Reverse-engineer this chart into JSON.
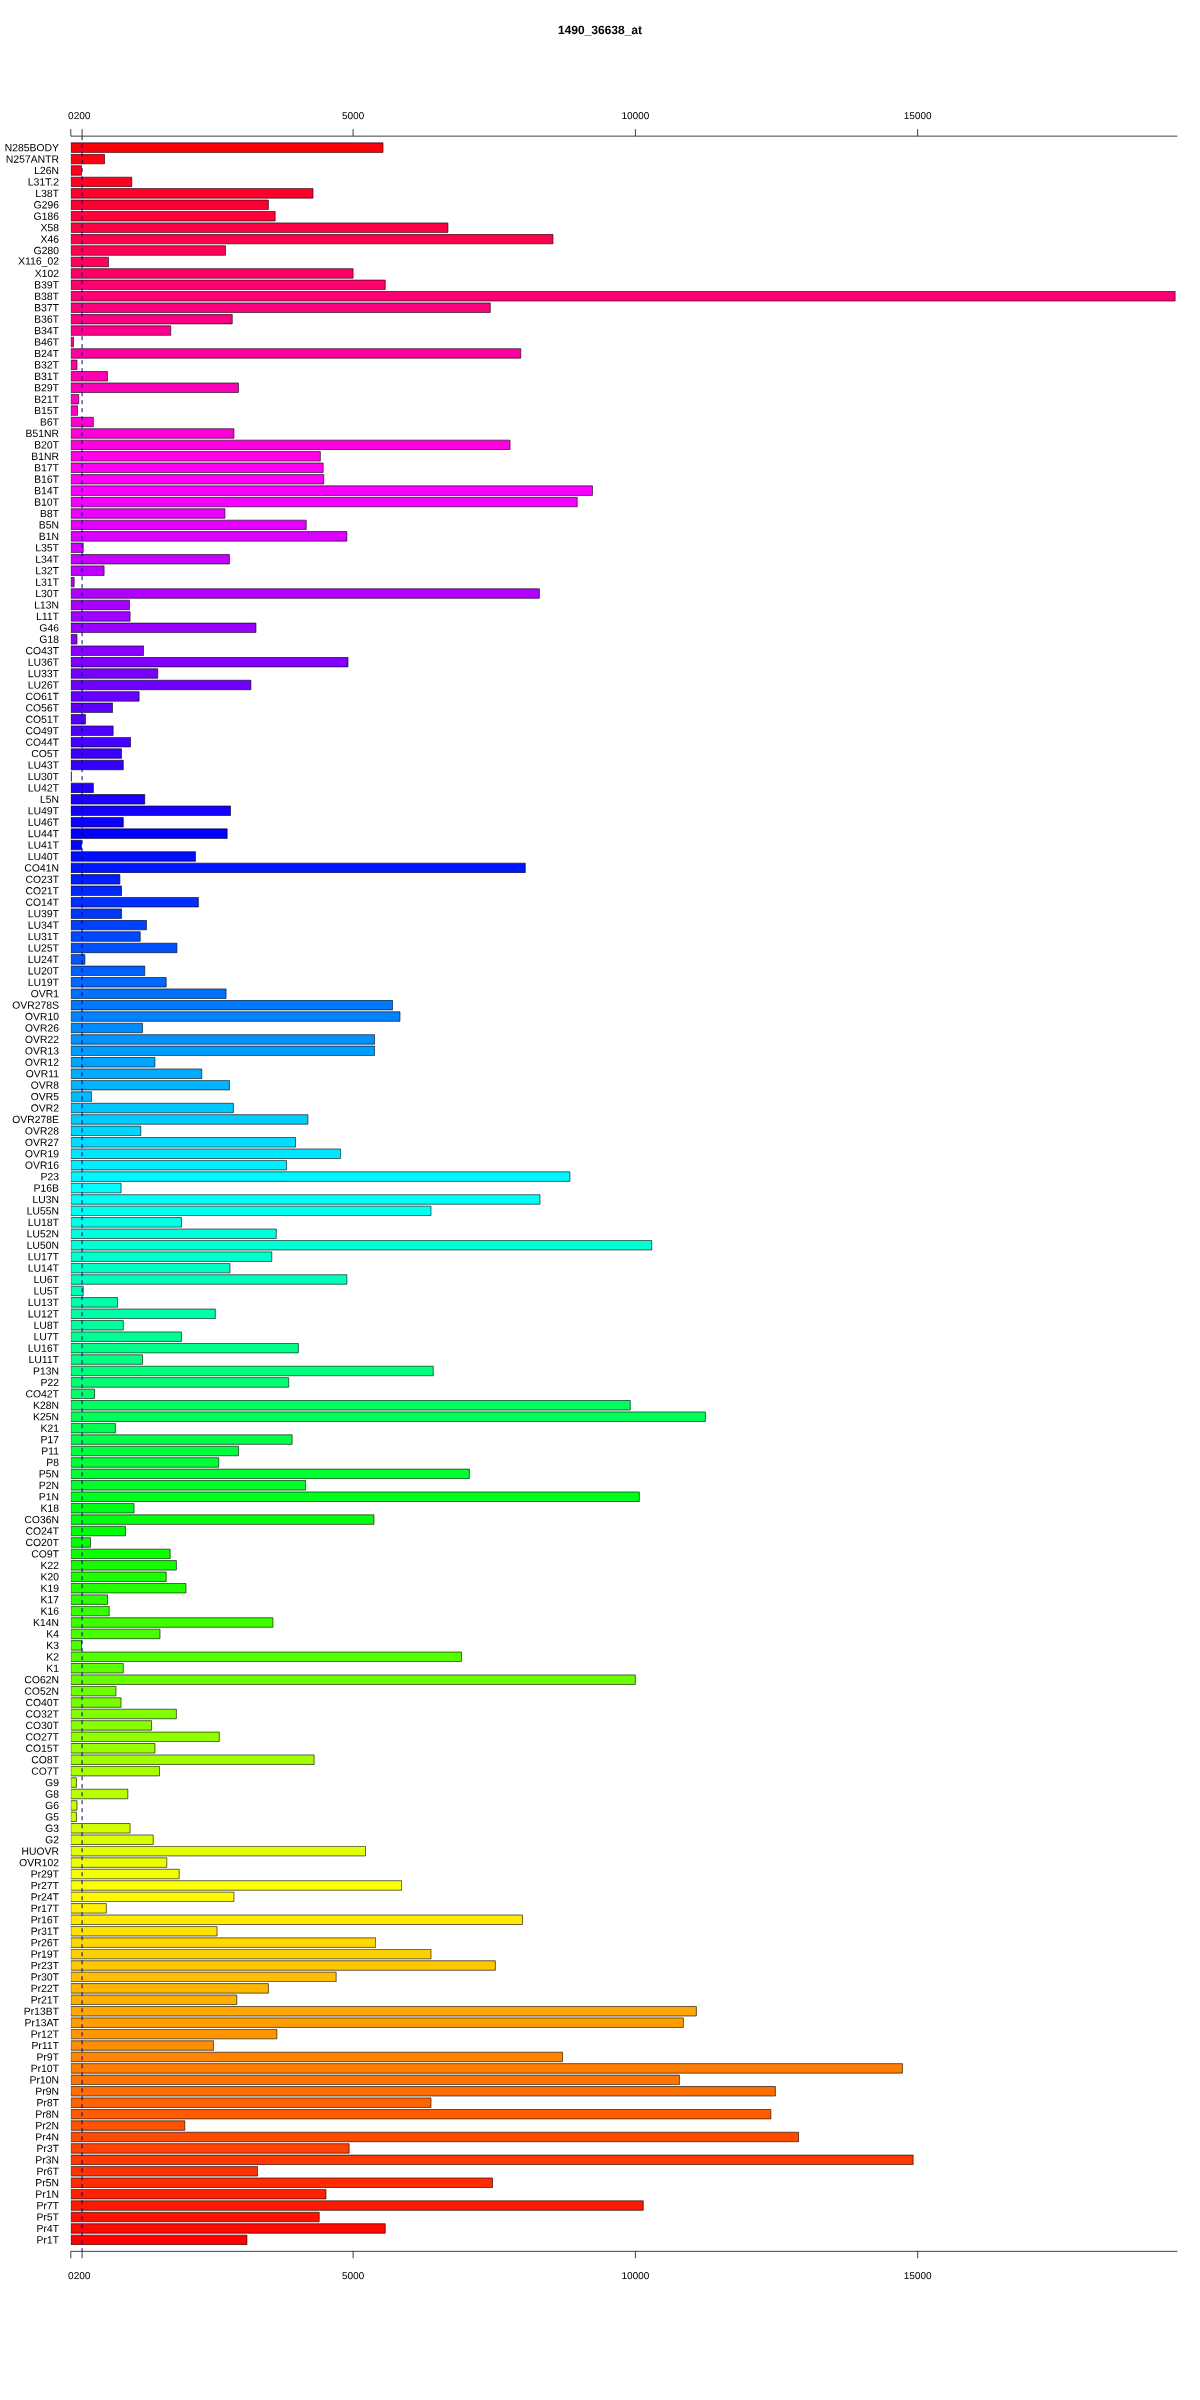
{
  "chart_data": {
    "type": "bar",
    "orientation": "horizontal",
    "title": "1490_36638_at",
    "categories": [
      "N285BODY",
      "N257ANTR",
      "L26N",
      "L31T.2",
      "L38T",
      "G296",
      "G186",
      "X58",
      "X46",
      "G280",
      "X116_02",
      "X102",
      "B39T",
      "B38T",
      "B37T",
      "B36T",
      "B34T",
      "B46T",
      "B24T",
      "B32T",
      "B31T",
      "B29T",
      "B21T",
      "B15T",
      "B6T",
      "B51NR",
      "B20T",
      "B1NR",
      "B17T",
      "B16T",
      "B14T",
      "B10T",
      "B8T",
      "B5N",
      "B1N",
      "L35T",
      "L34T",
      "L32T",
      "L31T",
      "L30T",
      "L13N",
      "L11T",
      "G46",
      "G18",
      "CO43T",
      "LU36T",
      "LU33T",
      "LU26T",
      "CO61T",
      "CO56T",
      "CO51T",
      "CO49T",
      "CO44T",
      "CO5T",
      "LU43T",
      "LU30T",
      "LU42T",
      "L5N",
      "LU49T",
      "LU46T",
      "LU44T",
      "LU41T",
      "LU40T",
      "CO41N",
      "CO23T",
      "CO21T",
      "CO14T",
      "LU39T",
      "LU34T",
      "LU31T",
      "LU25T",
      "LU24T",
      "LU20T",
      "LU19T",
      "OVR1",
      "OVR278S",
      "OVR10",
      "OVR26",
      "OVR22",
      "OVR13",
      "OVR12",
      "OVR11",
      "OVR8",
      "OVR5",
      "OVR2",
      "OVR278E",
      "OVR28",
      "OVR27",
      "OVR19",
      "OVR16",
      "P23",
      "P16B",
      "LU3N",
      "LU55N",
      "LU18T",
      "LU52N",
      "LU50N",
      "LU17T",
      "LU14T",
      "LU6T",
      "LU5T",
      "LU13T",
      "LU12T",
      "LU8T",
      "LU7T",
      "LU16T",
      "LU11T",
      "P13N",
      "P22",
      "CO42T",
      "K28N",
      "K25N",
      "K21",
      "P17",
      "P11",
      "P8",
      "P5N",
      "P2N",
      "P1N",
      "K18",
      "CO36N",
      "CO24T",
      "CO20T",
      "CO9T",
      "K22",
      "K20",
      "K19",
      "K17",
      "K16",
      "K14N",
      "K4",
      "K3",
      "K2",
      "K1",
      "CO62N",
      "CO52N",
      "CO40T",
      "CO32T",
      "CO30T",
      "CO27T",
      "CO15T",
      "CO8T",
      "CO7T",
      "G9",
      "G8",
      "G6",
      "G5",
      "G3",
      "G2",
      "HUOVR",
      "OVR102",
      "Pr29T",
      "Pr27T",
      "Pr24T",
      "Pr17T",
      "Pr16T",
      "Pr31T",
      "Pr26T",
      "Pr19T",
      "Pr23T",
      "Pr30T",
      "Pr22T",
      "Pr21T",
      "Pr13BT",
      "Pr13AT",
      "Pr12T",
      "Pr11T",
      "Pr9T",
      "Pr10T",
      "Pr10N",
      "Pr9N",
      "Pr8T",
      "Pr8N",
      "Pr2N",
      "Pr4N",
      "Pr3T",
      "Pr3N",
      "Pr6T",
      "Pr5N",
      "Pr1N",
      "Pr7T",
      "Pr5T",
      "Pr4T",
      "Pr1T"
    ],
    "values": [
      5530,
      600,
      190,
      1080,
      4290,
      3500,
      3620,
      6680,
      8540,
      2740,
      670,
      5000,
      5570,
      19560,
      7430,
      2860,
      1770,
      50,
      7970,
      110,
      650,
      2970,
      140,
      120,
      400,
      2890,
      7780,
      4420,
      4470,
      4480,
      9240,
      8970,
      2730,
      4170,
      4890,
      220,
      2810,
      590,
      60,
      8300,
      1040,
      1050,
      3280,
      110,
      1290,
      4910,
      1540,
      3190,
      1210,
      740,
      260,
      750,
      1060,
      900,
      930,
      10,
      400,
      1310,
      2830,
      930,
      2770,
      190,
      2210,
      8050,
      870,
      900,
      2260,
      900,
      1340,
      1230,
      1880,
      250,
      1310,
      1690,
      2750,
      5700,
      5830,
      1270,
      5380,
      5380,
      1490,
      2320,
      2810,
      370,
      2880,
      4200,
      1240,
      3980,
      4780,
      3820,
      8840,
      890,
      8310,
      6380,
      1960,
      3640,
      10290,
      3560,
      2820,
      4890,
      220,
      830,
      2560,
      930,
      1960,
      4030,
      1270,
      6420,
      3860,
      420,
      9910,
      11240,
      790,
      3920,
      2970,
      2620,
      7060,
      4160,
      10070,
      1120,
      5370,
      970,
      350,
      1760,
      1870,
      1690,
      2040,
      650,
      680,
      3580,
      1580,
      190,
      6920,
      930,
      10000,
      800,
      890,
      1870,
      1430,
      2630,
      1490,
      4310,
      1570,
      100,
      1010,
      110,
      100,
      1050,
      1460,
      5220,
      1700,
      1920,
      5860,
      2890,
      630,
      8000,
      2590,
      5400,
      6380,
      7520,
      4700,
      3500,
      2940,
      11080,
      10850,
      3650,
      2530,
      8710,
      14730,
      10780,
      12480,
      6380,
      12400,
      2020,
      12890,
      4930,
      14920,
      3310,
      7470,
      4520,
      10140,
      4400,
      5570,
      3120
    ],
    "colors": [
      "#ff0008",
      "#ff0011",
      "#ff0019",
      "#ff0021",
      "#ff002a",
      "#ff0032",
      "#ff003a",
      "#ff0043",
      "#ff004b",
      "#ff0053",
      "#ff005b",
      "#ff0064",
      "#ff006c",
      "#ff0074",
      "#ff007d",
      "#ff0085",
      "#ff008d",
      "#ff0096",
      "#ff009e",
      "#ff00a6",
      "#ff00af",
      "#ff00b7",
      "#ff00bf",
      "#ff00c8",
      "#ff00d0",
      "#ff00d8",
      "#ff00e1",
      "#ff00e9",
      "#ff00f1",
      "#ff00f9",
      "#fc00ff",
      "#f400ff",
      "#ec00ff",
      "#e300ff",
      "#db00ff",
      "#d300ff",
      "#ca00ff",
      "#c200ff",
      "#ba00ff",
      "#b100ff",
      "#a900ff",
      "#a100ff",
      "#9800ff",
      "#9000ff",
      "#8800ff",
      "#8000ff",
      "#7700ff",
      "#6f00ff",
      "#6700ff",
      "#5e00ff",
      "#5600ff",
      "#4e00ff",
      "#4500ff",
      "#3d00ff",
      "#3500ff",
      "#2c00ff",
      "#2400ff",
      "#1c00ff",
      "#1300ff",
      "#0b00ff",
      "#0300ff",
      "#0006ff",
      "#000eff",
      "#0016ff",
      "#001eff",
      "#0027ff",
      "#002fff",
      "#0037ff",
      "#0040ff",
      "#0048ff",
      "#0050ff",
      "#0059ff",
      "#0061ff",
      "#0069ff",
      "#0072ff",
      "#007aff",
      "#0082ff",
      "#008bff",
      "#0093ff",
      "#009bff",
      "#00a4ff",
      "#00acff",
      "#00b4ff",
      "#00bcff",
      "#00c5ff",
      "#00cdff",
      "#00d5ff",
      "#00deff",
      "#00e6ff",
      "#00eeff",
      "#00f7ff",
      "#00ffff",
      "#00fff7",
      "#00ffee",
      "#00ffe6",
      "#00ffde",
      "#00ffd5",
      "#00ffcd",
      "#00ffc5",
      "#00ffbc",
      "#00ffb4",
      "#00ffac",
      "#00ffa4",
      "#00ff9b",
      "#00ff93",
      "#00ff8b",
      "#00ff82",
      "#00ff7a",
      "#00ff72",
      "#00ff69",
      "#00ff61",
      "#00ff59",
      "#00ff50",
      "#00ff48",
      "#00ff40",
      "#00ff37",
      "#00ff2f",
      "#00ff27",
      "#00ff1e",
      "#00ff16",
      "#00ff0e",
      "#00ff06",
      "#03ff00",
      "#0bff00",
      "#13ff00",
      "#1cff00",
      "#24ff00",
      "#2cff00",
      "#35ff00",
      "#3dff00",
      "#45ff00",
      "#4eff00",
      "#56ff00",
      "#5eff00",
      "#67ff00",
      "#6fff00",
      "#77ff00",
      "#7fff00",
      "#88ff00",
      "#90ff00",
      "#98ff00",
      "#a1ff00",
      "#a9ff00",
      "#b1ff00",
      "#baff00",
      "#c2ff00",
      "#caff00",
      "#d3ff00",
      "#dbff00",
      "#e3ff00",
      "#ecff00",
      "#f4ff00",
      "#fcff00",
      "#fff900",
      "#fff100",
      "#ffe900",
      "#ffe100",
      "#ffd800",
      "#ffd000",
      "#ffc800",
      "#ffbf00",
      "#ffb700",
      "#ffaf00",
      "#ffa600",
      "#ff9e00",
      "#ff9600",
      "#ff8d00",
      "#ff8500",
      "#ff7d00",
      "#ff7400",
      "#ff6c00",
      "#ff6400",
      "#ff5b00",
      "#ff5300",
      "#ff4b00",
      "#ff4300",
      "#ff3a00",
      "#ff3200",
      "#ff2a00",
      "#ff2100",
      "#ff1900",
      "#ff1100",
      "#ff0800",
      "#ff0000"
    ],
    "xlim": [
      0,
      19600
    ],
    "xticks": [
      0,
      200,
      5000,
      10000,
      15000
    ],
    "x2lim": [
      0,
      19600
    ],
    "x2ticks": [
      0,
      200,
      5000,
      10000,
      15000
    ],
    "ref_lines": [
      {
        "axis": "x",
        "value": 200,
        "color": "#00008b",
        "line_style": "dashed"
      }
    ]
  }
}
